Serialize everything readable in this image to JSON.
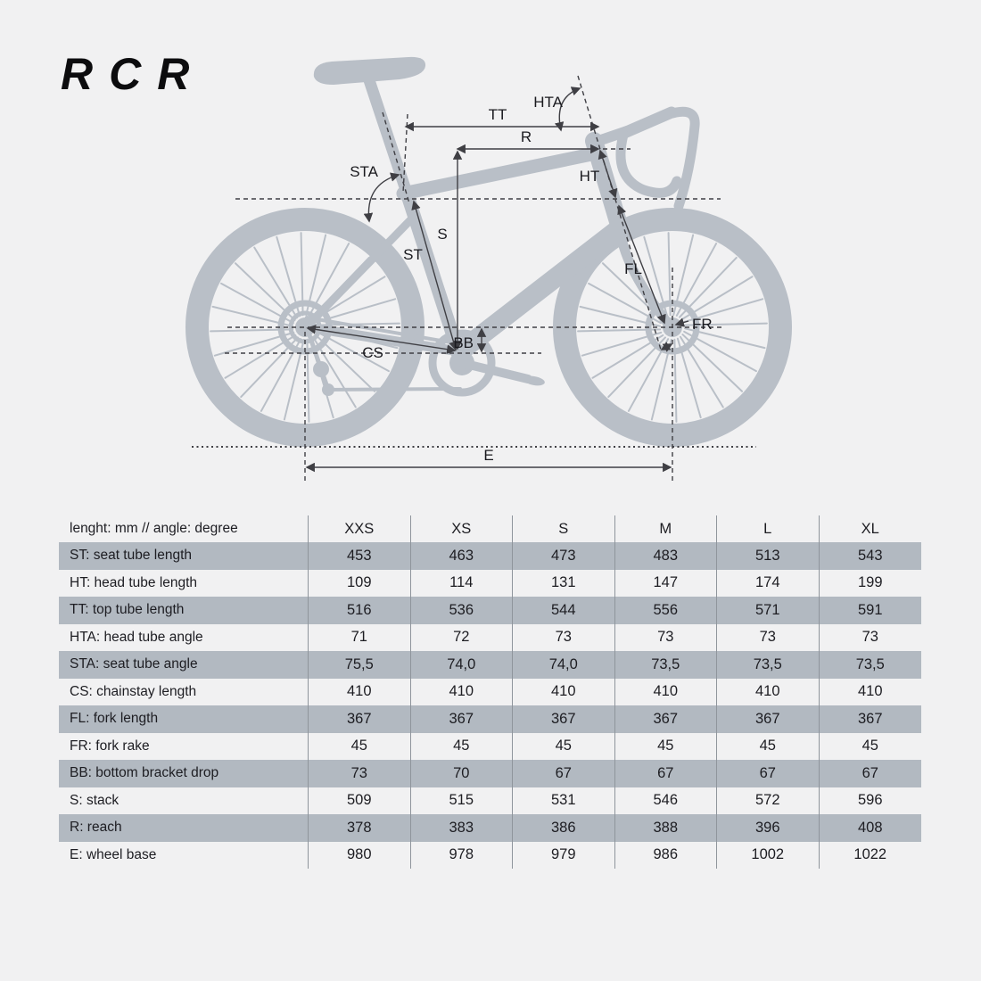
{
  "logo": {
    "text": "RCR"
  },
  "diagram": {
    "labels": {
      "tt": "TT",
      "r": "R",
      "hta": "HTA",
      "sta": "STA",
      "ht": "HT",
      "s": "S",
      "st": "ST",
      "fl": "FL",
      "fr": "FR",
      "bb": "BB",
      "cs": "CS",
      "e": "E"
    },
    "colors": {
      "background": "#f1f1f2",
      "bike_silhouette": "#b9bfc7",
      "annotation": "#3f3f44",
      "shaded_row": "#b2b9c1",
      "text": "#1d1d22"
    }
  },
  "table": {
    "header": {
      "label": "lenght: mm // angle: degree",
      "columns": [
        "XXS",
        "XS",
        "S",
        "M",
        "L",
        "XL"
      ]
    },
    "rows": [
      {
        "code": "ST",
        "label": "ST: seat tube length",
        "values": [
          "453",
          "463",
          "473",
          "483",
          "513",
          "543"
        ],
        "shaded": true
      },
      {
        "code": "HT",
        "label": "HT: head tube length",
        "values": [
          "109",
          "114",
          "131",
          "147",
          "174",
          "199"
        ],
        "shaded": false
      },
      {
        "code": "TT",
        "label": "TT: top tube length",
        "values": [
          "516",
          "536",
          "544",
          "556",
          "571",
          "591"
        ],
        "shaded": true
      },
      {
        "code": "HTA",
        "label": "HTA: head tube angle",
        "values": [
          "71",
          "72",
          "73",
          "73",
          "73",
          "73"
        ],
        "shaded": false
      },
      {
        "code": "STA",
        "label": "STA: seat tube angle",
        "values": [
          "75,5",
          "74,0",
          "74,0",
          "73,5",
          "73,5",
          "73,5"
        ],
        "shaded": true
      },
      {
        "code": "CS",
        "label": "CS: chainstay length",
        "values": [
          "410",
          "410",
          "410",
          "410",
          "410",
          "410"
        ],
        "shaded": false
      },
      {
        "code": "FL",
        "label": "FL: fork length",
        "values": [
          "367",
          "367",
          "367",
          "367",
          "367",
          "367"
        ],
        "shaded": true
      },
      {
        "code": "FR",
        "label": "FR: fork rake",
        "values": [
          "45",
          "45",
          "45",
          "45",
          "45",
          "45"
        ],
        "shaded": false
      },
      {
        "code": "BB",
        "label": "BB: bottom bracket drop",
        "values": [
          "73",
          "70",
          "67",
          "67",
          "67",
          "67"
        ],
        "shaded": true
      },
      {
        "code": "S",
        "label": "S: stack",
        "values": [
          "509",
          "515",
          "531",
          "546",
          "572",
          "596"
        ],
        "shaded": false
      },
      {
        "code": "R",
        "label": "R: reach",
        "values": [
          "378",
          "383",
          "386",
          "388",
          "396",
          "408"
        ],
        "shaded": true
      },
      {
        "code": "E",
        "label": "E: wheel base",
        "values": [
          "980",
          "978",
          "979",
          "986",
          "1002",
          "1022"
        ],
        "shaded": false
      }
    ]
  },
  "chart_data": {
    "type": "table",
    "title": "RCR road bike geometry",
    "units_note": "lenght: mm // angle: degree",
    "categories": [
      "XXS",
      "XS",
      "S",
      "M",
      "L",
      "XL"
    ],
    "series": [
      {
        "name": "ST: seat tube length",
        "values": [
          453,
          463,
          473,
          483,
          513,
          543
        ]
      },
      {
        "name": "HT: head tube length",
        "values": [
          109,
          114,
          131,
          147,
          174,
          199
        ]
      },
      {
        "name": "TT: top tube length",
        "values": [
          516,
          536,
          544,
          556,
          571,
          591
        ]
      },
      {
        "name": "HTA: head tube angle",
        "values": [
          71,
          72,
          73,
          73,
          73,
          73
        ]
      },
      {
        "name": "STA: seat tube angle",
        "values": [
          75.5,
          74.0,
          74.0,
          73.5,
          73.5,
          73.5
        ]
      },
      {
        "name": "CS: chainstay length",
        "values": [
          410,
          410,
          410,
          410,
          410,
          410
        ]
      },
      {
        "name": "FL: fork length",
        "values": [
          367,
          367,
          367,
          367,
          367,
          367
        ]
      },
      {
        "name": "FR: fork rake",
        "values": [
          45,
          45,
          45,
          45,
          45,
          45
        ]
      },
      {
        "name": "BB: bottom bracket drop",
        "values": [
          73,
          70,
          67,
          67,
          67,
          67
        ]
      },
      {
        "name": "S: stack",
        "values": [
          509,
          515,
          531,
          546,
          572,
          596
        ]
      },
      {
        "name": "R: reach",
        "values": [
          378,
          383,
          386,
          388,
          396,
          408
        ]
      },
      {
        "name": "E: wheel base",
        "values": [
          980,
          978,
          979,
          986,
          1002,
          1022
        ]
      }
    ]
  }
}
